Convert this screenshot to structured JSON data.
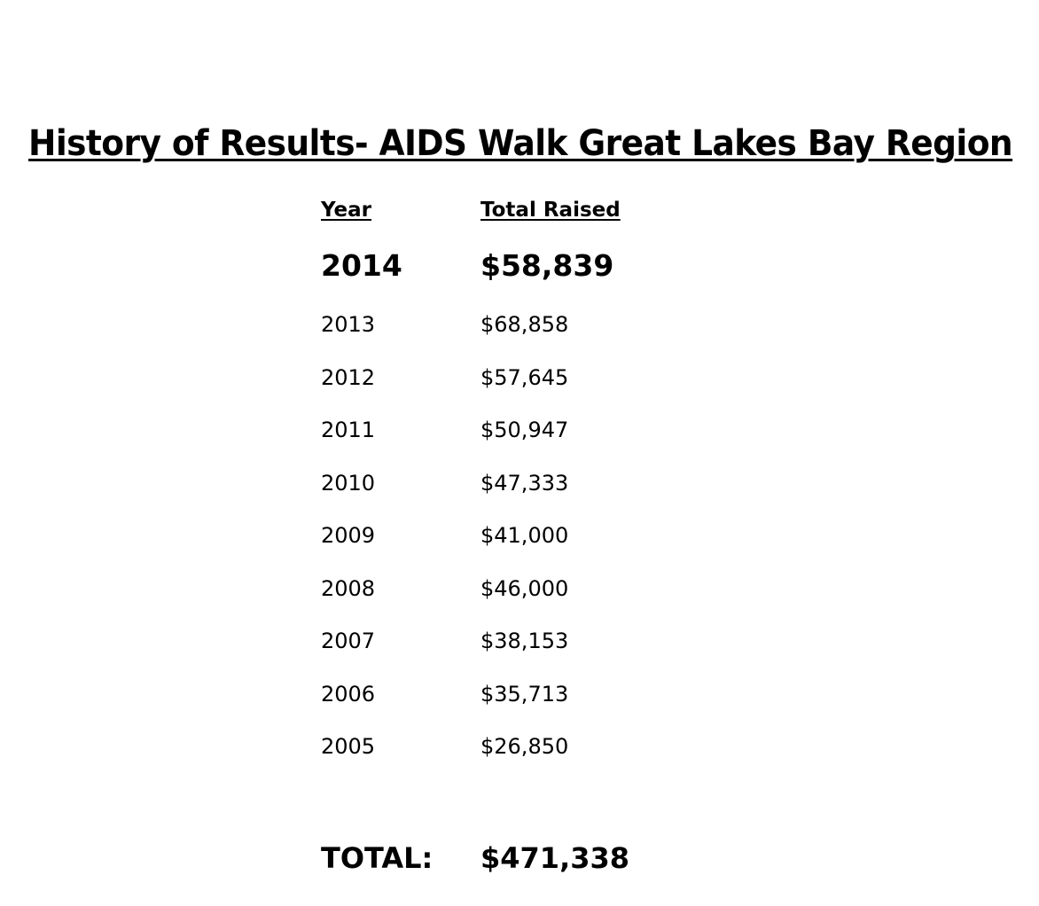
{
  "page": {
    "title": "History of Results- AIDS Walk Great Lakes Bay Region"
  },
  "table": {
    "headers": {
      "year": "Year",
      "total_raised": "Total Raised"
    },
    "rows": [
      {
        "year": "2014",
        "amount": "$58,839",
        "emphasized": true
      },
      {
        "year": "2013",
        "amount": "$68,858"
      },
      {
        "year": "2012",
        "amount": "$57,645"
      },
      {
        "year": "2011",
        "amount": "$50,947"
      },
      {
        "year": "2010",
        "amount": "$47,333"
      },
      {
        "year": "2009",
        "amount": "$41,000"
      },
      {
        "year": "2008",
        "amount": "$46,000"
      },
      {
        "year": "2007",
        "amount": "$38,153"
      },
      {
        "year": "2006",
        "amount": "$35,713"
      },
      {
        "year": "2005",
        "amount": "$26,850"
      }
    ],
    "total": {
      "label": "TOTAL:",
      "amount": "$471,338"
    }
  }
}
